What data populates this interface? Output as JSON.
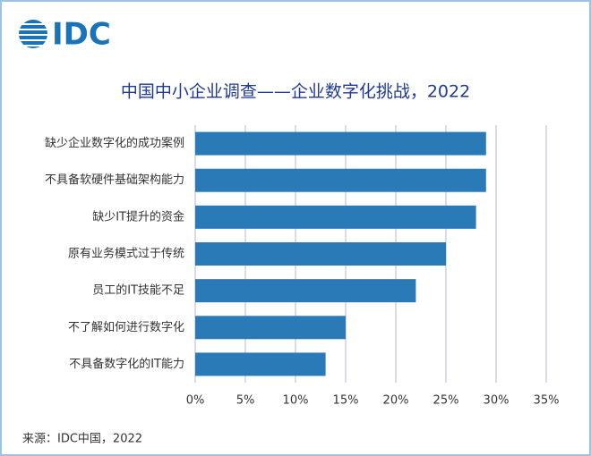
{
  "logo": "IDC",
  "chart_data": {
    "type": "bar",
    "orientation": "horizontal",
    "title": "中国中小企业调查——企业数字化挑战，2022",
    "source": "来源：IDC中国，2022",
    "categories": [
      "缺少企业数字化的成功案例",
      "不具备软硬件基础架构能力",
      "缺少IT提升的资金",
      "原有业务模式过于传统",
      "员工的IT技能不足",
      "不了解如何进行数字化",
      "不具备数字化的IT能力"
    ],
    "values": [
      29,
      29,
      28,
      25,
      22,
      15,
      13
    ],
    "color": "#2a7ab8",
    "xlim": [
      0,
      35
    ],
    "xticks": [
      {
        "value": 0,
        "label": "0%"
      },
      {
        "value": 5,
        "label": "5%"
      },
      {
        "value": 10,
        "label": "10%"
      },
      {
        "value": 15,
        "label": "15%"
      },
      {
        "value": 20,
        "label": "20%"
      },
      {
        "value": 25,
        "label": "25%"
      },
      {
        "value": 30,
        "label": "30%"
      },
      {
        "value": 35,
        "label": "35%"
      }
    ],
    "grid": true
  }
}
